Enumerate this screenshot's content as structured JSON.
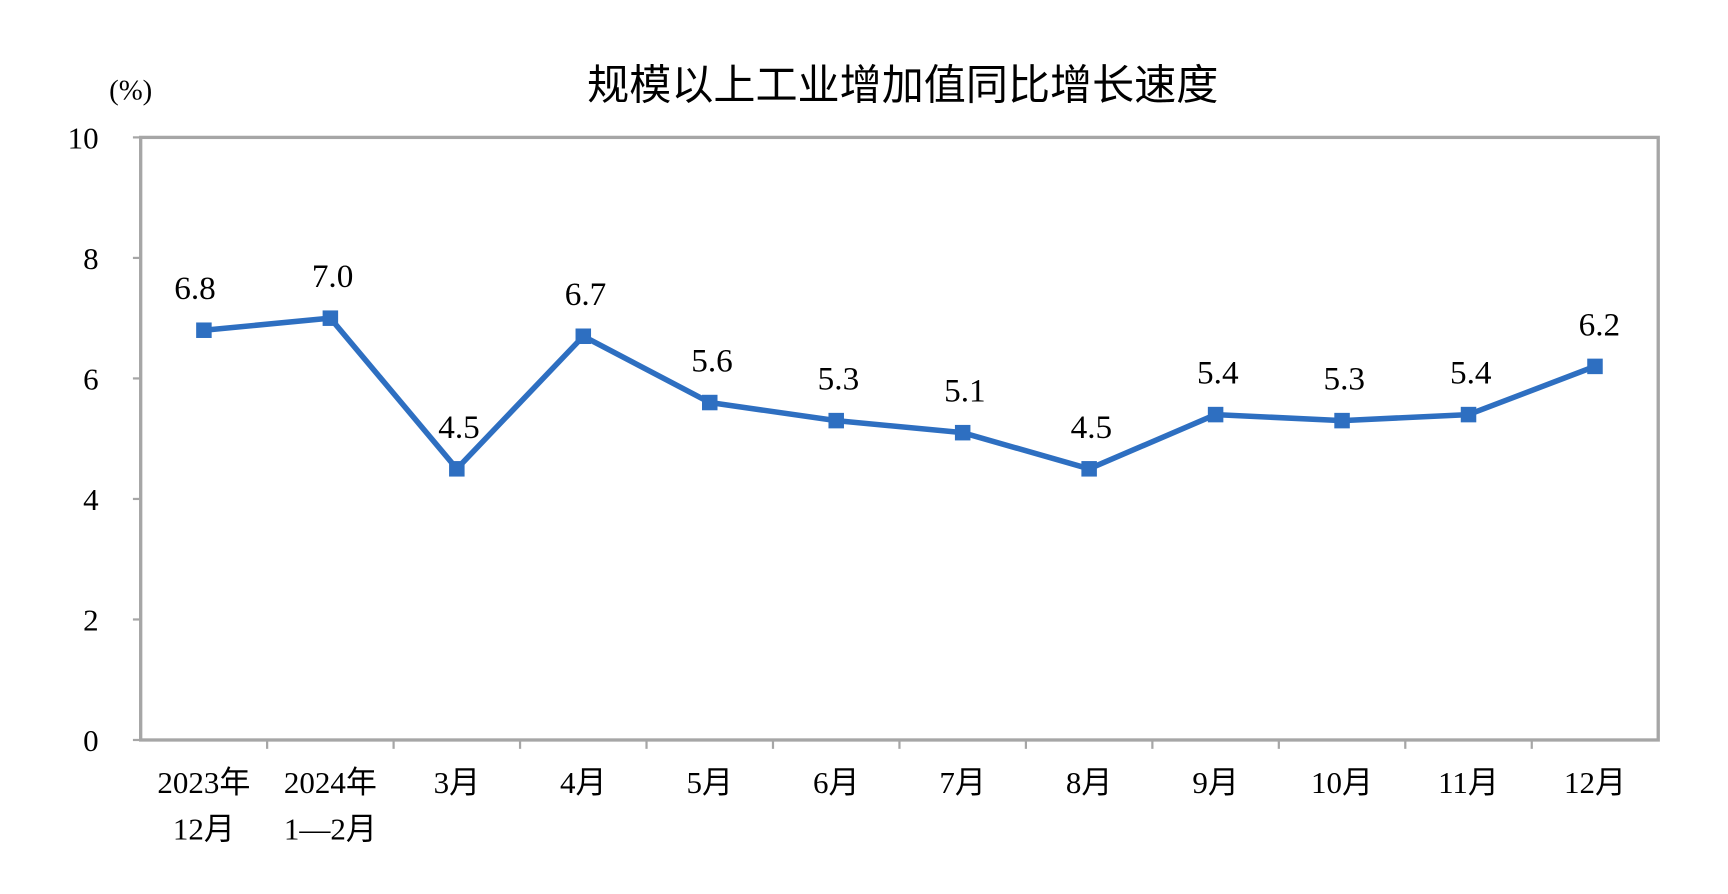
{
  "chart_data": {
    "type": "line",
    "title": "规模以上工业增加值同比增长速度",
    "ylabel": "(%)",
    "xlabel": "",
    "ylim": [
      0,
      10
    ],
    "yticks": [
      "0",
      "2",
      "4",
      "6",
      "8",
      "10"
    ],
    "categories": [
      [
        "2023年",
        "12月"
      ],
      [
        "2024年",
        "1—2月"
      ],
      [
        "3月"
      ],
      [
        "4月"
      ],
      [
        "5月"
      ],
      [
        "6月"
      ],
      [
        "7月"
      ],
      [
        "8月"
      ],
      [
        "9月"
      ],
      [
        "10月"
      ],
      [
        "11月"
      ],
      [
        "12月"
      ]
    ],
    "values": [
      6.8,
      7.0,
      4.5,
      6.7,
      5.6,
      5.3,
      5.1,
      4.5,
      5.4,
      5.3,
      5.4,
      6.2
    ],
    "data_labels": [
      "6.8",
      "7.0",
      "4.5",
      "6.7",
      "5.6",
      "5.3",
      "5.1",
      "4.5",
      "5.4",
      "5.3",
      "5.4",
      "6.2"
    ],
    "grid": false,
    "legend": "none",
    "colors": {
      "line": "#2E6FC1",
      "axis": "#A6A6A6"
    }
  }
}
